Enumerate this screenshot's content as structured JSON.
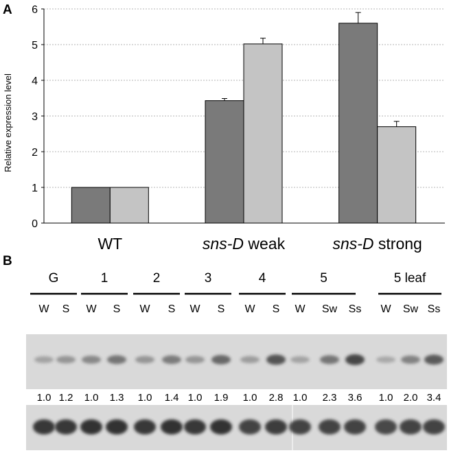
{
  "panel_a": {
    "letter": "A"
  },
  "panel_b": {
    "letter": "B"
  },
  "chart_data": {
    "type": "bar",
    "title": "",
    "xlabel": "",
    "ylabel": "Relative expression level",
    "ylim": [
      0,
      6
    ],
    "yticks": [
      "0",
      "1",
      "2",
      "3",
      "4",
      "5",
      "6"
    ],
    "grid": "horizontal dotted",
    "legend": "none",
    "categories": [
      {
        "italic": "",
        "plain": "WT"
      },
      {
        "italic": "sns-D",
        "plain": " weak"
      },
      {
        "italic": "sns-D",
        "plain": " strong"
      }
    ],
    "series": [
      {
        "name": "dark bar",
        "color": "#7a7a7a",
        "values": [
          1.0,
          3.43,
          5.6
        ],
        "errors": [
          0,
          0.06,
          0.3
        ]
      },
      {
        "name": "light bar",
        "color": "#c4c4c4",
        "values": [
          1.0,
          5.02,
          2.7
        ],
        "errors": [
          0,
          0.16,
          0.15
        ]
      }
    ]
  },
  "blot": {
    "colors": {
      "bg": "#d9d9d9",
      "band": "#2a2a2a"
    },
    "groups": [
      {
        "label": "G",
        "lanes": [
          "W",
          "S"
        ]
      },
      {
        "label": "1",
        "lanes": [
          "W",
          "S"
        ]
      },
      {
        "label": "2",
        "lanes": [
          "W",
          "S"
        ]
      },
      {
        "label": "3",
        "lanes": [
          "W",
          "S"
        ]
      },
      {
        "label": "4",
        "lanes": [
          "W",
          "S"
        ]
      },
      {
        "label": "5",
        "lanes": [
          "W",
          "Sw",
          "Ss"
        ]
      },
      {
        "label": "5 leaf",
        "lanes": [
          "W",
          "Sw",
          "Ss"
        ]
      }
    ],
    "ratios": [
      "1.0",
      "1.2",
      "1.0",
      "1.3",
      "1.0",
      "1.4",
      "1.0",
      "1.9",
      "1.0",
      "2.8",
      "1.0",
      "2.3",
      "3.6",
      "1.0",
      "2.0",
      "3.4"
    ],
    "upper_band_intensity": [
      0.25,
      0.35,
      0.45,
      0.6,
      0.35,
      0.55,
      0.35,
      0.7,
      0.3,
      0.85,
      0.25,
      0.6,
      0.95,
      0.2,
      0.5,
      0.8
    ],
    "lower_band_intensity": [
      0.95,
      0.95,
      1.0,
      1.0,
      0.95,
      1.0,
      0.95,
      1.0,
      0.85,
      0.9,
      0.85,
      0.85,
      0.85,
      0.8,
      0.85,
      0.85
    ]
  }
}
